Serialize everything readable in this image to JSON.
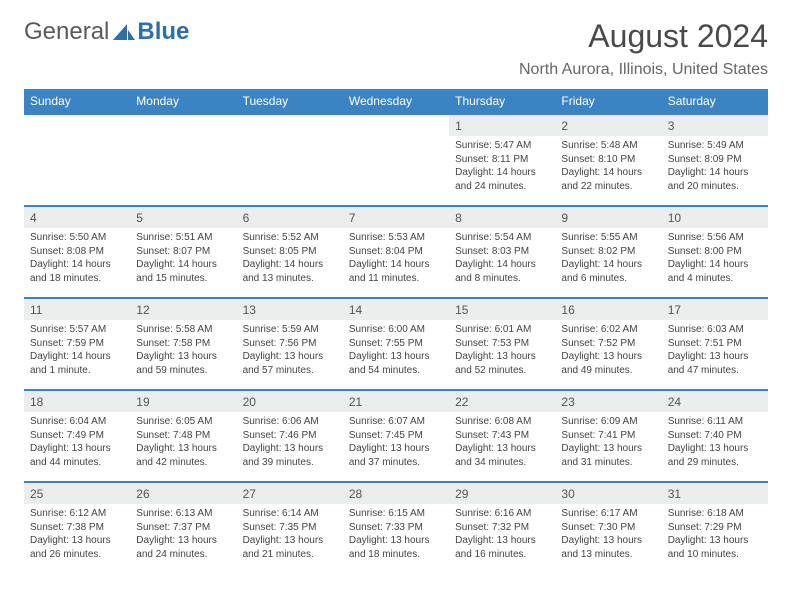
{
  "logo": {
    "text1": "General",
    "text2": "Blue"
  },
  "title": "August 2024",
  "location": "North Aurora, Illinois, United States",
  "colors": {
    "header_bg": "#3a84c4",
    "header_text": "#ffffff",
    "daynum_bg": "#eceded",
    "rule": "#3a84c4",
    "text": "#444444",
    "logo_gray": "#5a5a5a",
    "logo_blue": "#2f6fa8"
  },
  "weekdays": [
    "Sunday",
    "Monday",
    "Tuesday",
    "Wednesday",
    "Thursday",
    "Friday",
    "Saturday"
  ],
  "weeks": [
    [
      null,
      null,
      null,
      null,
      {
        "n": "1",
        "sr": "5:47 AM",
        "ss": "8:11 PM",
        "dl": "14 hours and 24 minutes."
      },
      {
        "n": "2",
        "sr": "5:48 AM",
        "ss": "8:10 PM",
        "dl": "14 hours and 22 minutes."
      },
      {
        "n": "3",
        "sr": "5:49 AM",
        "ss": "8:09 PM",
        "dl": "14 hours and 20 minutes."
      }
    ],
    [
      {
        "n": "4",
        "sr": "5:50 AM",
        "ss": "8:08 PM",
        "dl": "14 hours and 18 minutes."
      },
      {
        "n": "5",
        "sr": "5:51 AM",
        "ss": "8:07 PM",
        "dl": "14 hours and 15 minutes."
      },
      {
        "n": "6",
        "sr": "5:52 AM",
        "ss": "8:05 PM",
        "dl": "14 hours and 13 minutes."
      },
      {
        "n": "7",
        "sr": "5:53 AM",
        "ss": "8:04 PM",
        "dl": "14 hours and 11 minutes."
      },
      {
        "n": "8",
        "sr": "5:54 AM",
        "ss": "8:03 PM",
        "dl": "14 hours and 8 minutes."
      },
      {
        "n": "9",
        "sr": "5:55 AM",
        "ss": "8:02 PM",
        "dl": "14 hours and 6 minutes."
      },
      {
        "n": "10",
        "sr": "5:56 AM",
        "ss": "8:00 PM",
        "dl": "14 hours and 4 minutes."
      }
    ],
    [
      {
        "n": "11",
        "sr": "5:57 AM",
        "ss": "7:59 PM",
        "dl": "14 hours and 1 minute."
      },
      {
        "n": "12",
        "sr": "5:58 AM",
        "ss": "7:58 PM",
        "dl": "13 hours and 59 minutes."
      },
      {
        "n": "13",
        "sr": "5:59 AM",
        "ss": "7:56 PM",
        "dl": "13 hours and 57 minutes."
      },
      {
        "n": "14",
        "sr": "6:00 AM",
        "ss": "7:55 PM",
        "dl": "13 hours and 54 minutes."
      },
      {
        "n": "15",
        "sr": "6:01 AM",
        "ss": "7:53 PM",
        "dl": "13 hours and 52 minutes."
      },
      {
        "n": "16",
        "sr": "6:02 AM",
        "ss": "7:52 PM",
        "dl": "13 hours and 49 minutes."
      },
      {
        "n": "17",
        "sr": "6:03 AM",
        "ss": "7:51 PM",
        "dl": "13 hours and 47 minutes."
      }
    ],
    [
      {
        "n": "18",
        "sr": "6:04 AM",
        "ss": "7:49 PM",
        "dl": "13 hours and 44 minutes."
      },
      {
        "n": "19",
        "sr": "6:05 AM",
        "ss": "7:48 PM",
        "dl": "13 hours and 42 minutes."
      },
      {
        "n": "20",
        "sr": "6:06 AM",
        "ss": "7:46 PM",
        "dl": "13 hours and 39 minutes."
      },
      {
        "n": "21",
        "sr": "6:07 AM",
        "ss": "7:45 PM",
        "dl": "13 hours and 37 minutes."
      },
      {
        "n": "22",
        "sr": "6:08 AM",
        "ss": "7:43 PM",
        "dl": "13 hours and 34 minutes."
      },
      {
        "n": "23",
        "sr": "6:09 AM",
        "ss": "7:41 PM",
        "dl": "13 hours and 31 minutes."
      },
      {
        "n": "24",
        "sr": "6:11 AM",
        "ss": "7:40 PM",
        "dl": "13 hours and 29 minutes."
      }
    ],
    [
      {
        "n": "25",
        "sr": "6:12 AM",
        "ss": "7:38 PM",
        "dl": "13 hours and 26 minutes."
      },
      {
        "n": "26",
        "sr": "6:13 AM",
        "ss": "7:37 PM",
        "dl": "13 hours and 24 minutes."
      },
      {
        "n": "27",
        "sr": "6:14 AM",
        "ss": "7:35 PM",
        "dl": "13 hours and 21 minutes."
      },
      {
        "n": "28",
        "sr": "6:15 AM",
        "ss": "7:33 PM",
        "dl": "13 hours and 18 minutes."
      },
      {
        "n": "29",
        "sr": "6:16 AM",
        "ss": "7:32 PM",
        "dl": "13 hours and 16 minutes."
      },
      {
        "n": "30",
        "sr": "6:17 AM",
        "ss": "7:30 PM",
        "dl": "13 hours and 13 minutes."
      },
      {
        "n": "31",
        "sr": "6:18 AM",
        "ss": "7:29 PM",
        "dl": "13 hours and 10 minutes."
      }
    ]
  ],
  "labels": {
    "sunrise": "Sunrise:",
    "sunset": "Sunset:",
    "daylight": "Daylight:"
  }
}
